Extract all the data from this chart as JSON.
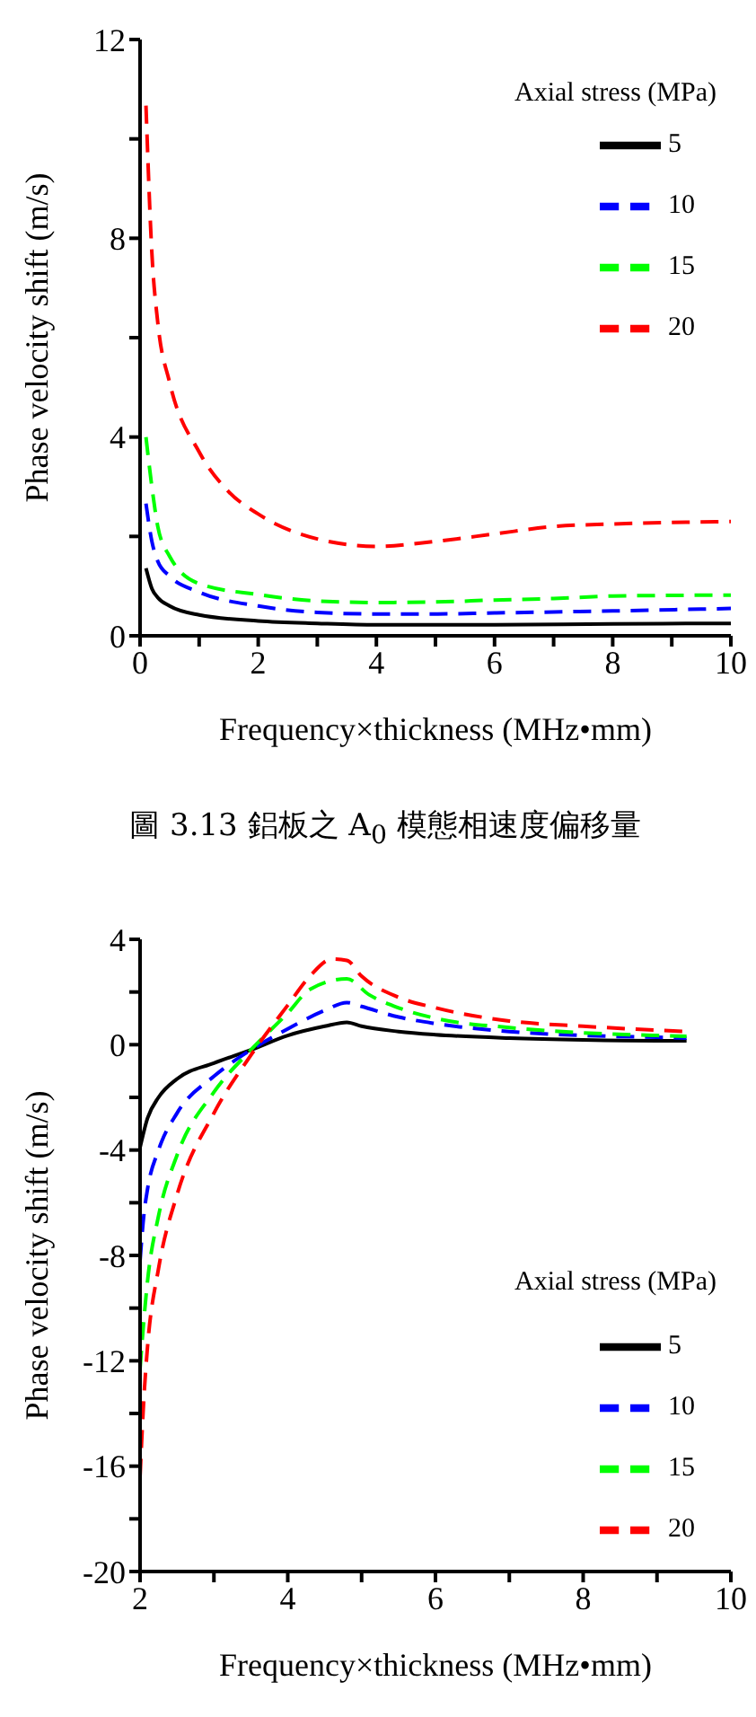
{
  "chart_data": [
    {
      "type": "line",
      "xlabel": "Frequency×thickness (MHz•mm)",
      "ylabel": "Phase velocity shift (m/s)",
      "legend_title": "Axial stress (MPa)",
      "legend": "top right",
      "annotations": [
        "圖 3.13 鋁板之 A$_{0}$ 模態相速度偏移量"
      ],
      "xlim": [
        0,
        10
      ],
      "xticks": [
        0,
        {
          "value": 1,
          "label": null
        },
        2,
        {
          "value": 3,
          "label": null
        },
        4,
        {
          "value": 5,
          "label": null
        },
        6,
        {
          "value": 7,
          "label": null
        },
        8,
        {
          "value": 9,
          "label": null
        },
        10
      ],
      "ylim": [
        0,
        12
      ],
      "yticks": [
        0,
        {
          "value": 2,
          "label": null
        },
        4,
        {
          "value": 6,
          "label": null
        },
        8,
        {
          "value": 10,
          "label": null
        },
        12
      ],
      "series": [
        {
          "name": "5",
          "color": "#000000",
          "line_style": "solid",
          "x": [
            0.1,
            0.2,
            0.3,
            0.5,
            1,
            2,
            3,
            4,
            6,
            8,
            10
          ],
          "values": [
            1.36,
            0.95,
            0.77,
            0.6,
            0.42,
            0.3,
            0.25,
            0.22,
            0.22,
            0.24,
            0.25
          ]
        },
        {
          "name": "10",
          "color": "#0000ff",
          "line_style": "dashed",
          "x": [
            0.1,
            0.2,
            0.3,
            0.5,
            1,
            2,
            3,
            4,
            5,
            6,
            8,
            10
          ],
          "values": [
            2.66,
            1.9,
            1.5,
            1.2,
            0.88,
            0.6,
            0.47,
            0.44,
            0.44,
            0.46,
            0.5,
            0.55
          ]
        },
        {
          "name": "15",
          "color": "#00ff00",
          "line_style": "dashed",
          "x": [
            0.1,
            0.2,
            0.3,
            0.5,
            1,
            2,
            3,
            4,
            5,
            6,
            7,
            8,
            10
          ],
          "values": [
            4.0,
            3.0,
            2.2,
            1.6,
            1.05,
            0.83,
            0.7,
            0.67,
            0.68,
            0.72,
            0.75,
            0.8,
            0.82
          ]
        },
        {
          "name": "20",
          "color": "#ff0000",
          "line_style": "dashed",
          "x": [
            0.1,
            0.2,
            0.3,
            0.5,
            1,
            1.5,
            2,
            3,
            4,
            5,
            6,
            7,
            8,
            9,
            10
          ],
          "values": [
            10.67,
            7.7,
            6.3,
            5.1,
            3.7,
            2.9,
            2.45,
            1.95,
            1.8,
            1.9,
            2.05,
            2.2,
            2.25,
            2.28,
            2.3
          ]
        }
      ]
    },
    {
      "type": "line",
      "xlabel": "Frequency×thickness (MHz•mm)",
      "ylabel": "Phase velocity shift (m/s)",
      "legend_title": "Axial stress (MPa)",
      "legend": "bottom right",
      "xlim": [
        2,
        10
      ],
      "xticks": [
        2,
        {
          "value": 3,
          "label": null
        },
        4,
        {
          "value": 5,
          "label": null
        },
        6,
        {
          "value": 7,
          "label": null
        },
        8,
        {
          "value": 9,
          "label": null
        },
        10
      ],
      "ylim": [
        -20,
        4
      ],
      "yticks": [
        -20,
        {
          "value": -18,
          "label": null
        },
        -16,
        {
          "value": -14,
          "label": null
        },
        -12,
        {
          "value": -10,
          "label": null
        },
        -8,
        {
          "value": -6,
          "label": null
        },
        -4,
        {
          "value": -2,
          "label": null
        },
        0,
        {
          "value": 2,
          "label": null
        },
        4
      ],
      "series": [
        {
          "name": "5",
          "color": "#000000",
          "line_style": "solid",
          "x": [
            2,
            2.1,
            2.25,
            2.5,
            3,
            3.5,
            4,
            4.5,
            4.8,
            5,
            5.5,
            6,
            7,
            8,
            9,
            9.4
          ],
          "values": [
            -3.9,
            -2.8,
            -2.0,
            -1.3,
            -0.7,
            -0.2,
            0.35,
            0.7,
            0.85,
            0.7,
            0.5,
            0.38,
            0.25,
            0.18,
            0.15,
            0.15
          ]
        },
        {
          "name": "10",
          "color": "#0000ff",
          "line_style": "dashed",
          "x": [
            2,
            2.05,
            2.1,
            2.25,
            2.5,
            3,
            3.5,
            4,
            4.5,
            4.8,
            5,
            5.5,
            6,
            7,
            8,
            9,
            9.4
          ],
          "values": [
            -8.2,
            -6.5,
            -5.5,
            -4.0,
            -2.6,
            -1.2,
            -0.2,
            0.6,
            1.3,
            1.6,
            1.45,
            1.05,
            0.8,
            0.5,
            0.35,
            0.28,
            0.25
          ]
        },
        {
          "name": "15",
          "color": "#00ff00",
          "line_style": "dashed",
          "x": [
            2,
            2.05,
            2.1,
            2.25,
            2.5,
            3,
            3.5,
            4,
            4.3,
            4.8,
            5.1,
            5.5,
            6,
            7,
            8,
            9,
            9.4
          ],
          "values": [
            -12.3,
            -10.5,
            -9,
            -6.5,
            -4.2,
            -1.8,
            -0.2,
            1.2,
            2.1,
            2.5,
            1.9,
            1.4,
            1.0,
            0.65,
            0.45,
            0.35,
            0.32
          ]
        },
        {
          "name": "20",
          "color": "#ff0000",
          "line_style": "dashed",
          "x": [
            2,
            2.05,
            2.1,
            2.25,
            2.5,
            3,
            3.5,
            4,
            4.3,
            4.6,
            4.8,
            5,
            5.5,
            6,
            7,
            8,
            9,
            9.4
          ],
          "values": [
            -16.4,
            -13.5,
            -11.5,
            -8.5,
            -5.7,
            -2.6,
            -0.4,
            1.5,
            2.6,
            3.25,
            3.2,
            2.6,
            1.8,
            1.4,
            0.9,
            0.7,
            0.55,
            0.5
          ]
        }
      ]
    }
  ]
}
